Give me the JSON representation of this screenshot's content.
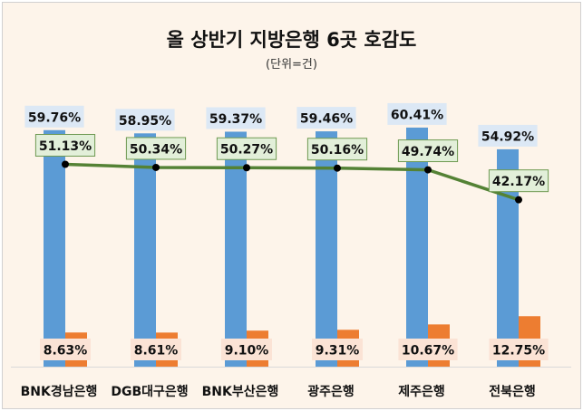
{
  "chart_data": {
    "type": "bar",
    "title": "올 상반기 지방은행 6곳 호감도",
    "subtitle": "(단위=건)",
    "categories": [
      "BNK경남은행",
      "DGB대구은행",
      "BNK부산은행",
      "광주은행",
      "제주은행",
      "전북은행"
    ],
    "series": [
      {
        "type": "bar",
        "color": "#5b9bd5",
        "label_bg": "#dce8f5",
        "values": [
          59.76,
          58.95,
          59.37,
          59.46,
          60.41,
          54.92
        ]
      },
      {
        "type": "bar",
        "color": "#ed7d31",
        "label_bg": "#fbe3d5",
        "values": [
          8.63,
          8.61,
          9.1,
          9.31,
          10.67,
          12.75
        ]
      },
      {
        "type": "line",
        "color": "#548235",
        "label_bg": "#e2efd9",
        "values": [
          51.13,
          50.34,
          50.27,
          50.16,
          49.74,
          42.17
        ]
      }
    ],
    "value_format": "%",
    "ylim": [
      0,
      70
    ],
    "grid": false,
    "legend": "none"
  }
}
